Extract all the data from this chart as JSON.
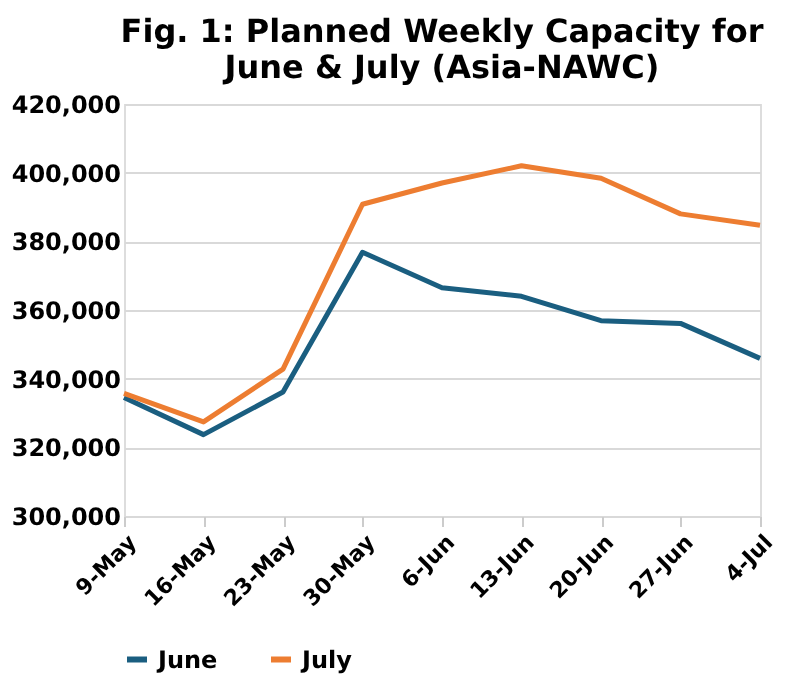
{
  "chart_data": {
    "type": "line",
    "title": [
      "Fig. 1: Planned Weekly Capacity for",
      "June & July (Asia-NAWC)"
    ],
    "categories": [
      "9-May",
      "16-May",
      "23-May",
      "30-May",
      "6-Jun",
      "13-Jun",
      "20-Jun",
      "27-Jun",
      "4-Jul"
    ],
    "series": [
      {
        "name": "June",
        "color": "#1a5e80",
        "values": [
          334500,
          323700,
          336100,
          376800,
          366500,
          364000,
          356900,
          356100,
          345900
        ]
      },
      {
        "name": "July",
        "color": "#ed7d31",
        "values": [
          335700,
          327400,
          342800,
          390800,
          397000,
          402000,
          398400,
          388000,
          384700
        ]
      }
    ],
    "ylim": [
      300000,
      420000
    ],
    "yticks": [
      {
        "value": 300000,
        "label": "300,000"
      },
      {
        "value": 320000,
        "label": "320,000"
      },
      {
        "value": 340000,
        "label": "340,000"
      },
      {
        "value": 360000,
        "label": "360,000"
      },
      {
        "value": 380000,
        "label": "380,000"
      },
      {
        "value": 400000,
        "label": "400,000"
      },
      {
        "value": 420000,
        "label": "420,000"
      }
    ],
    "grid": "y",
    "legend": "bottom",
    "marker": "none",
    "line_style": "solid"
  }
}
